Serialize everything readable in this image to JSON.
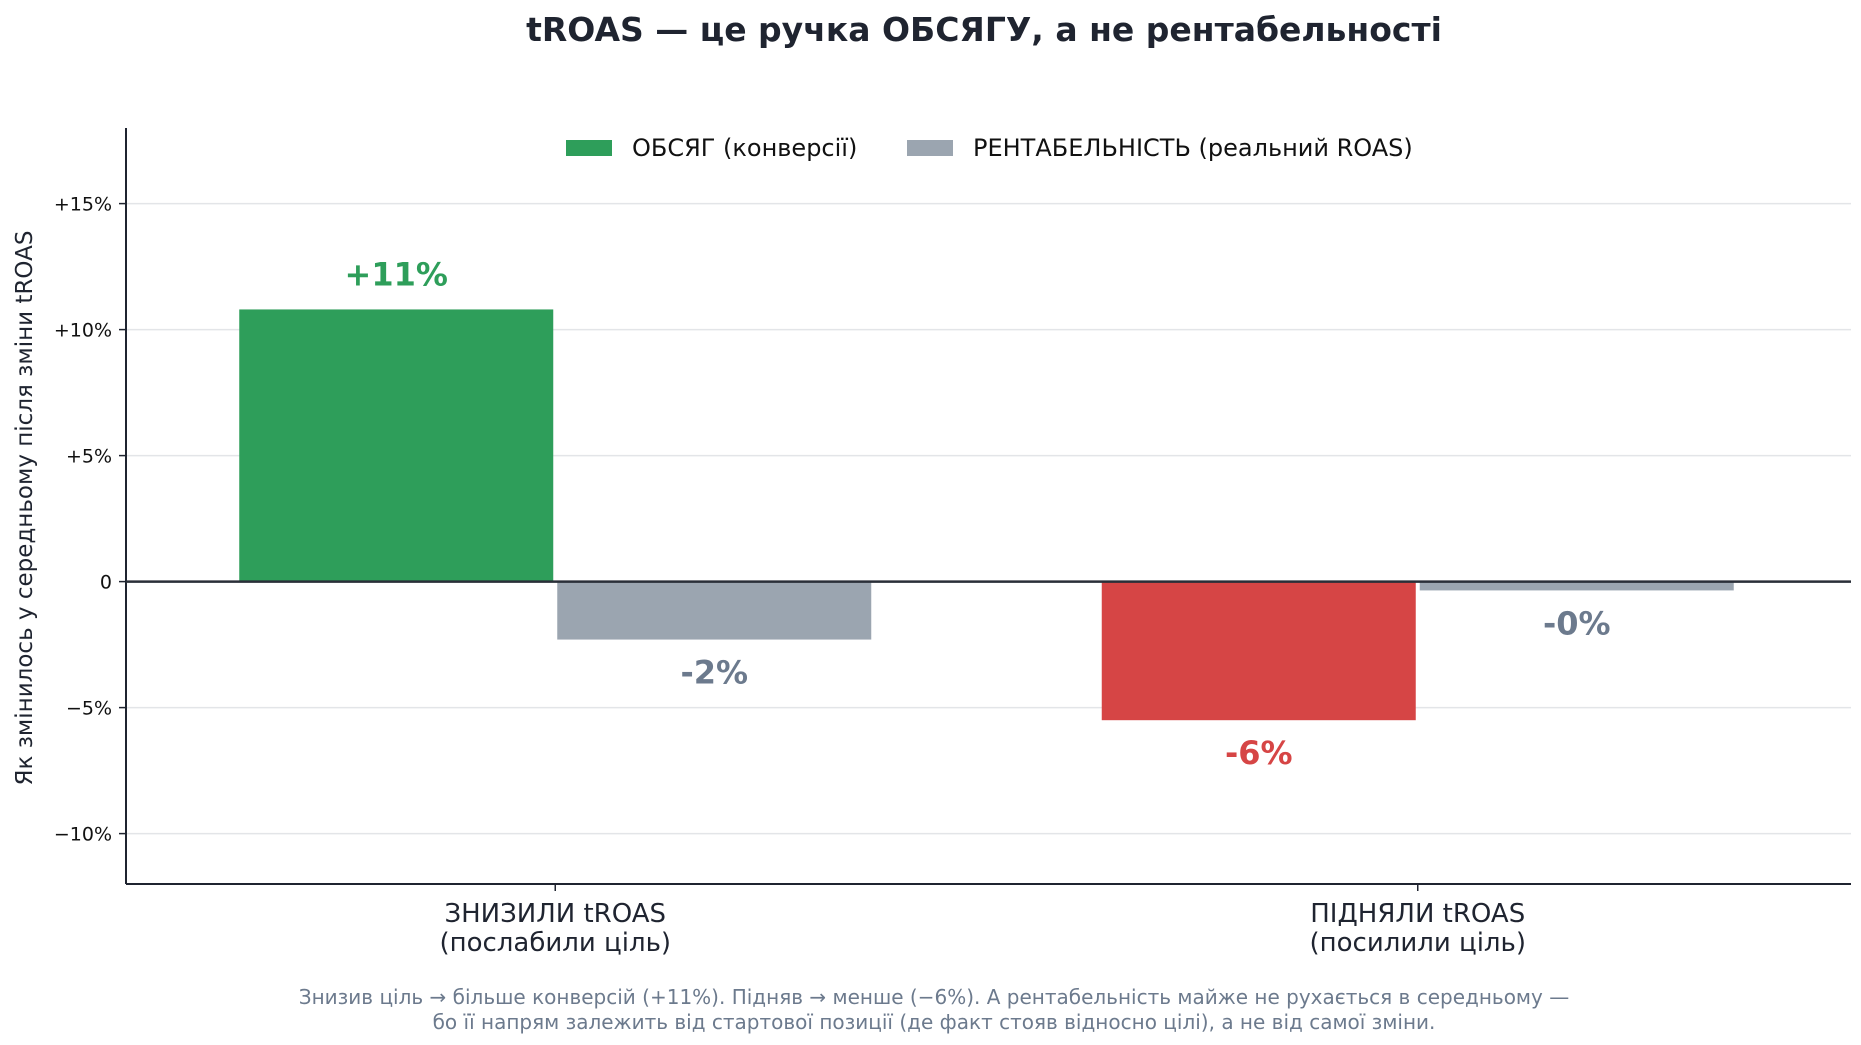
{
  "chart_data": {
    "type": "bar",
    "title": "tROAS — це ручка ОБСЯГУ, а не рентабельності",
    "ylabel": "Як змінилось у середньому після зміни tROAS",
    "xlabel": "",
    "categories": [
      [
        "ЗНИЗИЛИ tROAS",
        "(послабили ціль)"
      ],
      [
        "ПІДНЯЛИ tROAS",
        "(посилили ціль)"
      ]
    ],
    "series": [
      {
        "name": "ОБСЯГ (конверсії)",
        "values": [
          10.8,
          -5.5
        ],
        "labels": [
          "+11%",
          "-6%"
        ],
        "colors": [
          "#2e9e5a",
          "#d64545"
        ],
        "legend_color": "#2e9e5a"
      },
      {
        "name": "РЕНТАБЕЛЬНІСТЬ (реальний ROAS)",
        "values": [
          -2.3,
          -0.35
        ],
        "labels": [
          "-2%",
          "-0%"
        ],
        "colors": [
          "#9ba5b0",
          "#9ba5b0"
        ],
        "legend_color": "#9ba5b0"
      }
    ],
    "label_colors": {
      "positive_volume": "#2e9e5a",
      "negative_volume": "#d64545",
      "profit": "#6c7a8d"
    },
    "ylim": [
      -12,
      18
    ],
    "yticks": [
      {
        "value": 15,
        "label": "+15%"
      },
      {
        "value": 10,
        "label": "+10%"
      },
      {
        "value": 5,
        "label": "+5%"
      },
      {
        "value": 0,
        "label": "0"
      },
      {
        "value": -5,
        "label": "−5%"
      },
      {
        "value": -10,
        "label": "−10%"
      }
    ],
    "grid": true,
    "legend_position": "top-center"
  },
  "footnote": {
    "line1": "Знизив ціль → більше конверсій (+11%).  Підняв → менше (−6%).  А рентабельність майже не рухається в середньому —",
    "line2": "бо її напрям залежить від стартової позиції (де факт стояв відносно цілі), а не від самої зміни."
  }
}
